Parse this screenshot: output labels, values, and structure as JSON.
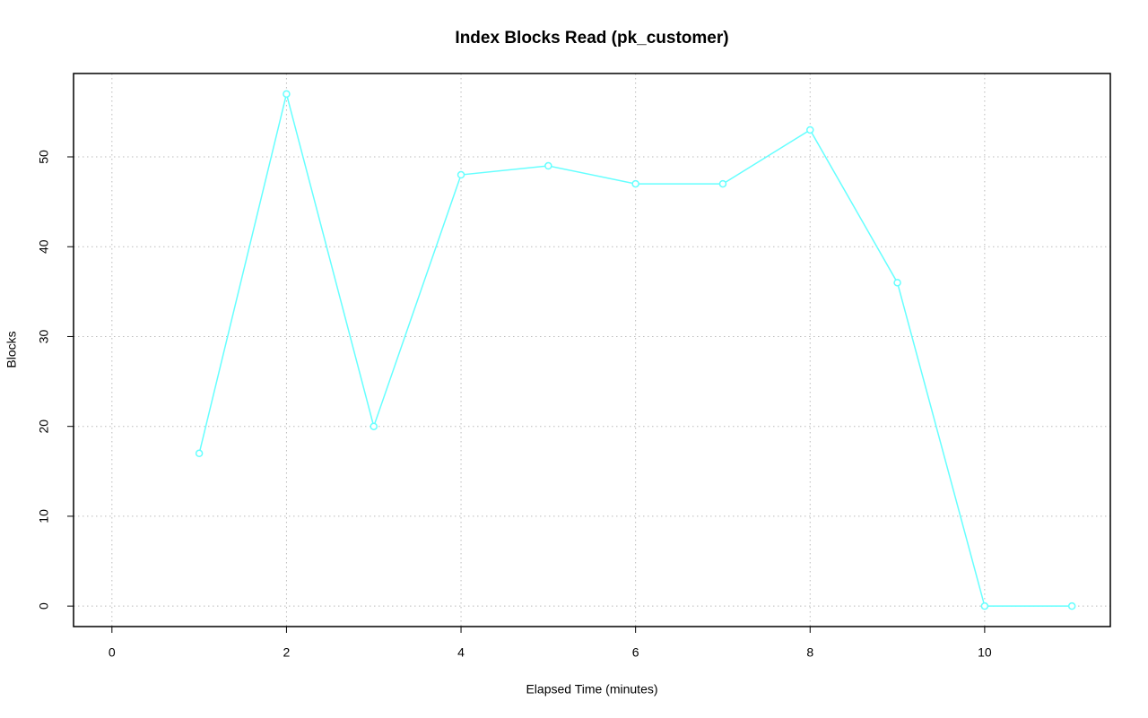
{
  "chart_data": {
    "type": "line",
    "title": "Index Blocks Read (pk_customer)",
    "x_label": "Elapsed Time (minutes)",
    "y_label": "Blocks",
    "x": [
      1,
      2,
      3,
      4,
      5,
      6,
      7,
      8,
      9,
      10,
      11
    ],
    "series": [
      {
        "color": "#66ffff",
        "values": [
          17,
          57,
          20,
          48,
          49,
          47,
          47,
          53,
          36,
          0,
          0
        ]
      }
    ],
    "xlim": [
      -0.44,
      11.44
    ],
    "ylim": [
      -2.28,
      59.28
    ],
    "xticks": [
      0,
      2,
      4,
      6,
      8,
      10
    ],
    "yticks": [
      0,
      10,
      20,
      30,
      40,
      50
    ],
    "grid": true,
    "markers": true
  }
}
